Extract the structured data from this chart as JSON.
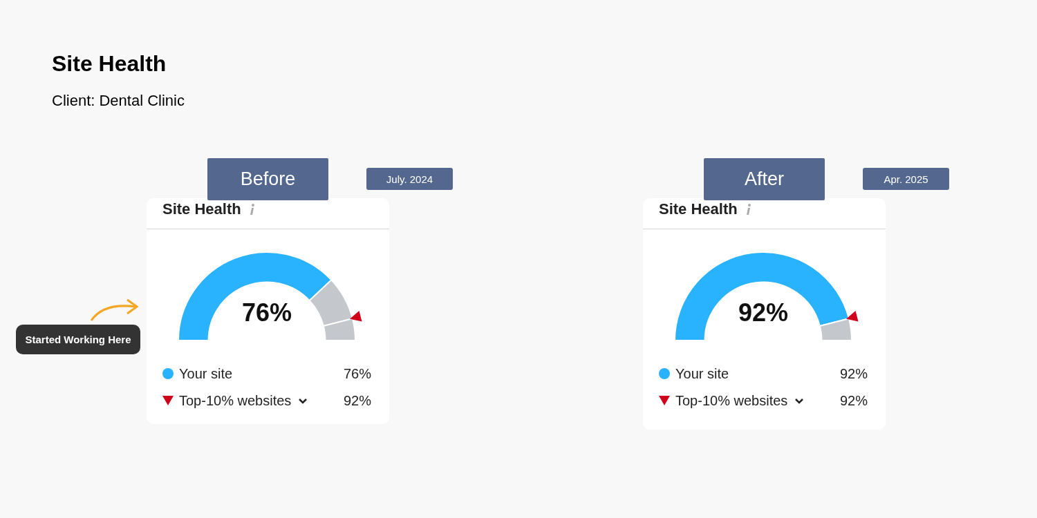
{
  "chart_data": [
    {
      "type": "other",
      "title": "Site Health",
      "subtitle": "Client: Dental Clinic"
    },
    {
      "type": "donut",
      "title": "Site Health",
      "categories": [
        "Your site",
        null,
        null
      ],
      "values": [
        76,
        16,
        8
      ],
      "colors": [
        "#29b2fe",
        "#c4c7cc",
        "#c4c7cc"
      ],
      "value_labels": [
        "76%",
        null,
        null
      ],
      "legend": "bottom",
      "annotations": [
        "Before",
        "July. 2024",
        "92%",
        "Started Working Here",
        "Top-10% websites"
      ]
    },
    {
      "type": "donut",
      "title": "Site Health",
      "categories": [
        "Your site",
        null
      ],
      "values": [
        92,
        8
      ],
      "colors": [
        "#29b2fe",
        "#c4c7cc"
      ],
      "value_labels": [
        "92%",
        null
      ],
      "legend": "bottom",
      "annotations": [
        "After",
        "Apr. 2025",
        "92%",
        null,
        "Top-10% websites"
      ]
    }
  ]
}
